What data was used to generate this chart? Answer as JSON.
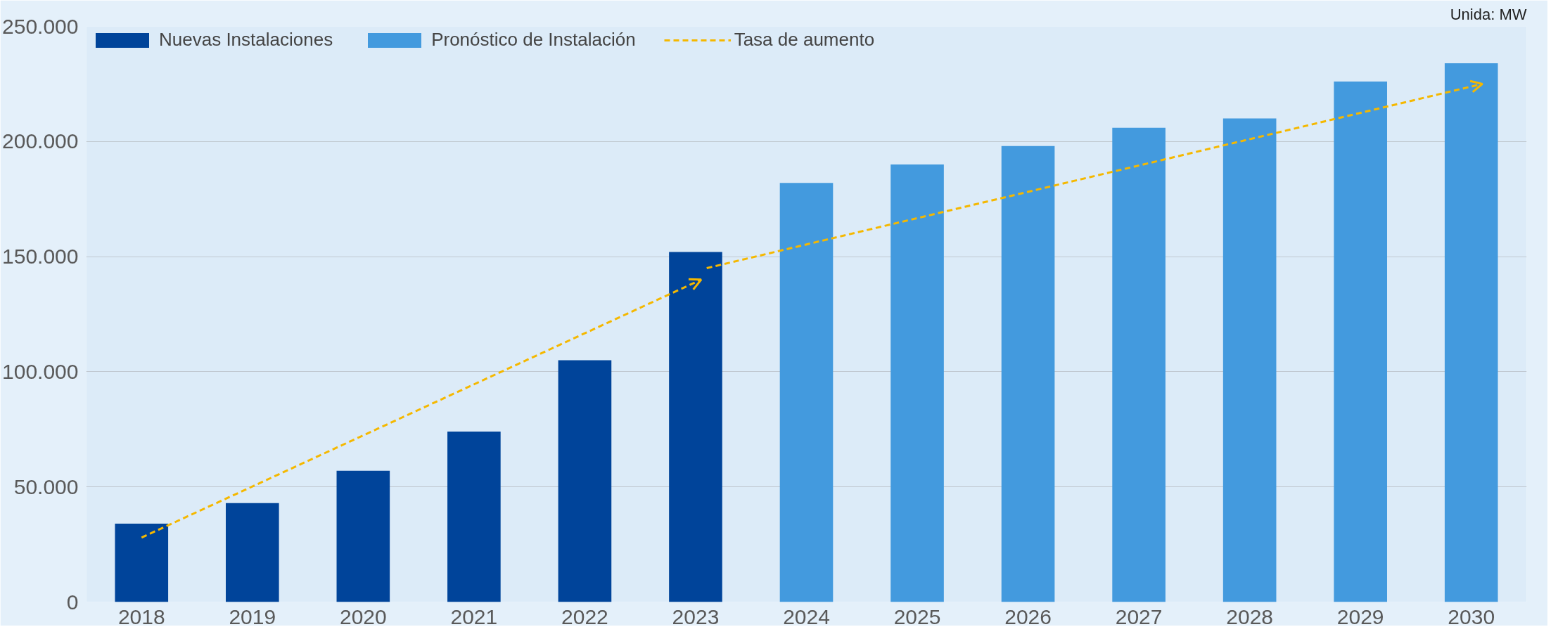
{
  "chart_data": {
    "type": "bar",
    "x": [
      2018,
      2019,
      2020,
      2021,
      2022,
      2023,
      2024,
      2025,
      2026,
      2027,
      2028,
      2029,
      2030
    ],
    "series": [
      {
        "name": "Nuevas Instalaciones",
        "color": "#00449a",
        "values": [
          34000,
          43000,
          57000,
          74000,
          105000,
          152000,
          null,
          null,
          null,
          null,
          null,
          null,
          null
        ]
      },
      {
        "name": "Pronóstico de Instalación",
        "color": "#439ade",
        "values": [
          null,
          null,
          null,
          null,
          null,
          null,
          182000,
          190000,
          198000,
          206000,
          210000,
          226000,
          234000
        ]
      },
      {
        "name": "Tasa de aumento",
        "type": "line",
        "color": "#f5b800",
        "line_style": "dashed",
        "x": [
          2018,
          2023.05,
          2023.08,
          2023.1,
          2030.1
        ],
        "values": [
          28000,
          140000,
          null,
          145000,
          225000
        ]
      }
    ],
    "xlim": [
      2017.5,
      2030.5
    ],
    "xticks": [
      2018,
      2019,
      2020,
      2021,
      2022,
      2023,
      2024,
      2025,
      2026,
      2027,
      2028,
      2029,
      2030
    ],
    "ylim": [
      0,
      250000
    ],
    "yticks": [
      {
        "value": 0,
        "label": "0"
      },
      {
        "value": 50000,
        "label": "50.000"
      },
      {
        "value": 100000,
        "label": "100.000"
      },
      {
        "value": 150000,
        "label": "150.000"
      },
      {
        "value": 200000,
        "label": "200.000"
      },
      {
        "value": 250000,
        "label": "250.000"
      }
    ],
    "grid": "y",
    "legend": "top left",
    "marker": "none",
    "annotations": [
      "Unida: MW"
    ]
  }
}
